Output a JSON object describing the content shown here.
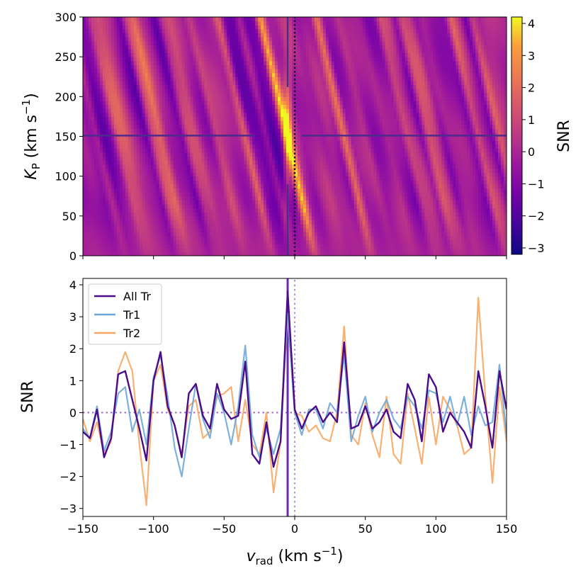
{
  "chart_data": [
    {
      "type": "heatmap",
      "xlim": [
        -150,
        150
      ],
      "ylim": [
        0,
        300
      ],
      "ylabel": {
        "main": "K",
        "sub": "P",
        "unit": "(km s",
        "exp": "−1",
        "close": ")"
      },
      "yticks": [
        0,
        50,
        100,
        150,
        200,
        250,
        300
      ],
      "xticks": [
        -150,
        -100,
        -50,
        0,
        50,
        100,
        150
      ],
      "colormap": "plasma",
      "vmin": -3.2,
      "vmax": 4.2,
      "colorbar": {
        "label": "SNR",
        "ticks": [
          {
            "value": 4,
            "label": "4"
          },
          {
            "value": 3,
            "label": "3"
          },
          {
            "value": 2,
            "label": "2"
          },
          {
            "value": 1,
            "label": "1"
          },
          {
            "value": 0,
            "label": "0"
          },
          {
            "value": -1,
            "label": "−1"
          },
          {
            "value": -2,
            "label": "−2"
          },
          {
            "value": -3,
            "label": "−3"
          }
        ]
      },
      "marker_hline_kp": 151,
      "marker_vline_v": -5,
      "zero_vline_v": 0,
      "peak": {
        "v": -5,
        "kp": 150,
        "snr": 4.2
      },
      "gap_v_range": [
        -28,
        5
      ]
    },
    {
      "type": "line",
      "xlim": [
        -150,
        150
      ],
      "ylim": [
        -3.25,
        4.2
      ],
      "ylabel": "SNR",
      "xlabel": {
        "main": "v",
        "sub": "rad",
        "unit": "(km s",
        "exp": "−1",
        "close": ")"
      },
      "xticks": [
        {
          "value": -150,
          "label": "−150"
        },
        {
          "value": -100,
          "label": "−100"
        },
        {
          "value": -50,
          "label": "−50"
        },
        {
          "value": 0,
          "label": "0"
        },
        {
          "value": 50,
          "label": "50"
        },
        {
          "value": 100,
          "label": "100"
        },
        {
          "value": 150,
          "label": "150"
        }
      ],
      "yticks": [
        {
          "value": 4,
          "label": "4"
        },
        {
          "value": 3,
          "label": "3"
        },
        {
          "value": 2,
          "label": "2"
        },
        {
          "value": 1,
          "label": "1"
        },
        {
          "value": 0,
          "label": "0"
        },
        {
          "value": -1,
          "label": "−1"
        },
        {
          "value": -2,
          "label": "−2"
        },
        {
          "value": -3,
          "label": "−3"
        }
      ],
      "hline_y": 0,
      "vlines": [
        -5,
        0
      ],
      "x": [
        -150,
        -145,
        -140,
        -135,
        -130,
        -125,
        -120,
        -115,
        -110,
        -105,
        -100,
        -95,
        -90,
        -85,
        -80,
        -75,
        -70,
        -65,
        -60,
        -55,
        -50,
        -45,
        -40,
        -35,
        -30,
        -25,
        -20,
        -15,
        -10,
        -5,
        0,
        5,
        10,
        15,
        20,
        25,
        30,
        35,
        40,
        45,
        50,
        55,
        60,
        65,
        70,
        75,
        80,
        85,
        90,
        95,
        100,
        105,
        110,
        115,
        120,
        125,
        130,
        135,
        140,
        145,
        150
      ],
      "series": [
        {
          "name": "All Tr",
          "color": "#4b0c8a",
          "values": [
            -0.6,
            -0.8,
            0.1,
            -1.4,
            -0.8,
            1.2,
            1.3,
            0.4,
            -0.5,
            -1.5,
            1.0,
            1.9,
            0.2,
            -0.4,
            -1.4,
            0.6,
            0.9,
            -0.1,
            -0.5,
            0.9,
            0.1,
            -0.2,
            -0.1,
            1.6,
            -1.3,
            -1.6,
            -0.3,
            -1.7,
            -0.9,
            3.8,
            0.1,
            -0.5,
            0.0,
            0.2,
            -0.3,
            0.0,
            -0.3,
            2.2,
            -0.5,
            -0.4,
            0.2,
            -0.5,
            -0.3,
            0.1,
            -0.6,
            -0.8,
            0.9,
            0.4,
            -0.9,
            1.2,
            0.8,
            -0.6,
            0.0,
            -0.3,
            -0.6,
            -1.1,
            1.3,
            0.2,
            -1.1,
            1.3,
            0.1
          ]
        },
        {
          "name": "Tr1",
          "color": "#6fa8d8",
          "values": [
            -0.5,
            -0.8,
            0.2,
            -1.2,
            -0.6,
            0.6,
            0.8,
            -0.6,
            0.1,
            -1.0,
            1.1,
            1.8,
            0.5,
            -1.1,
            -2.0,
            -0.5,
            0.9,
            -0.2,
            -0.8,
            0.6,
            0.0,
            -1.0,
            0.2,
            2.1,
            -0.7,
            -1.4,
            -0.5,
            -1.3,
            -0.5,
            3.1,
            0.0,
            -0.7,
            0.1,
            0.1,
            -0.5,
            0.3,
            0.0,
            1.8,
            -0.9,
            -0.1,
            0.5,
            -0.6,
            0.0,
            0.4,
            -0.2,
            -0.5,
            0.5,
            0.2,
            -0.5,
            0.7,
            0.6,
            -0.3,
            0.5,
            -0.4,
            0.5,
            -0.7,
            0.2,
            -0.4,
            -0.3,
            1.5,
            -0.7
          ]
        },
        {
          "name": "Tr2",
          "color": "#f7a864",
          "values": [
            -0.2,
            -0.9,
            -0.3,
            -1.3,
            -0.9,
            1.3,
            1.9,
            1.3,
            -1.0,
            -2.9,
            1.0,
            1.5,
            0.1,
            -0.4,
            -1.3,
            0.2,
            0.4,
            -0.8,
            -0.6,
            0.5,
            0.6,
            0.8,
            -0.9,
            0.4,
            -1.0,
            -1.3,
            0.0,
            -2.5,
            -0.9,
            3.1,
            0.0,
            -0.1,
            -0.6,
            -0.4,
            -0.8,
            -0.9,
            0.0,
            2.7,
            -0.7,
            -1.0,
            0.3,
            -0.7,
            -1.4,
            0.5,
            -1.3,
            -1.6,
            0.6,
            -0.5,
            -1.6,
            0.5,
            -1.0,
            0.5,
            0.1,
            -0.4,
            -1.3,
            -1.1,
            3.6,
            0.5,
            -2.2,
            0.8,
            -0.9
          ]
        }
      ]
    }
  ]
}
